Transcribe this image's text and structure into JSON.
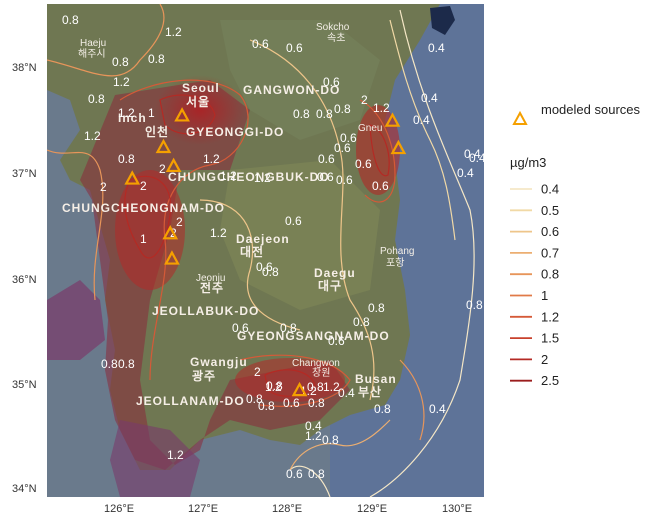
{
  "map": {
    "lat_ticks": [
      "34°N",
      "35°N",
      "36°N",
      "37°N",
      "38°N"
    ],
    "lon_ticks": [
      "126°E",
      "127°E",
      "128°E",
      "129°E",
      "130°E"
    ],
    "places": [
      {
        "id": "sokcho",
        "label": "Sokcho"
      },
      {
        "id": "sokcho-kr",
        "label": "속초"
      },
      {
        "id": "haeju",
        "label": "Haeju"
      },
      {
        "id": "haeju-kr",
        "label": "해주시"
      },
      {
        "id": "seoul",
        "label": "Seoul"
      },
      {
        "id": "seoul-kr",
        "label": "서울"
      },
      {
        "id": "incheon",
        "label": "Inch"
      },
      {
        "id": "incheon-kr",
        "label": "인천"
      },
      {
        "id": "gangwon",
        "label": "GANGWON-DO"
      },
      {
        "id": "gyeonggi",
        "label": "GYEONGGI-DO"
      },
      {
        "id": "chungbuk",
        "label": "CHUNGCHEONGBUK-DO"
      },
      {
        "id": "chungnam",
        "label": "CHUNGCHEONGNAM-DO"
      },
      {
        "id": "daejeon",
        "label": "Daejeon"
      },
      {
        "id": "daejeon-kr",
        "label": "대전"
      },
      {
        "id": "jeonju",
        "label": "Jeonju"
      },
      {
        "id": "jeonju-kr",
        "label": "전주"
      },
      {
        "id": "pohang",
        "label": "Pohang"
      },
      {
        "id": "pohang-kr",
        "label": "포항"
      },
      {
        "id": "daegu",
        "label": "Daegu"
      },
      {
        "id": "daegu-kr",
        "label": "대구"
      },
      {
        "id": "jeonbuk",
        "label": "JEOLLABUK-DO"
      },
      {
        "id": "gyeongnam",
        "label": "GYEONGSANGNAM-DO"
      },
      {
        "id": "gwangju",
        "label": "Gwangju"
      },
      {
        "id": "gwangju-kr",
        "label": "광주"
      },
      {
        "id": "changwon",
        "label": "Changwon"
      },
      {
        "id": "changwon-kr",
        "label": "창원"
      },
      {
        "id": "busan",
        "label": "Busan"
      },
      {
        "id": "busan-kr",
        "label": "부산"
      },
      {
        "id": "jeonnam",
        "label": "JEOLLANAM-DO"
      },
      {
        "id": "gangneung",
        "label": "Gneu"
      }
    ],
    "contour_labels": [
      "0.8",
      "0.4",
      "1.2",
      "0.8",
      "0.8",
      "1.2",
      "0.8",
      "0.6",
      "0.6",
      "0.6",
      "0.4",
      "0.4",
      "0.4",
      "1.2",
      "2",
      "1.2",
      "0.8",
      "0.8",
      "0.8",
      "0.6",
      "0.6",
      "0.6",
      "1.2",
      "1",
      "0.6",
      "0.4",
      "0.4",
      "2",
      "2",
      "1.2",
      "1.2",
      "0.8",
      "2",
      "1.2",
      "2",
      "2",
      "1.2",
      "1",
      "0.6",
      "0.6",
      "0.8",
      "0.6",
      "0.6",
      "0.6",
      "0.8",
      "0.8",
      "0.8",
      "0.6",
      "1.2",
      "2",
      "0.8",
      "0.8",
      "1.2",
      "0.8",
      "1.2",
      "0.4",
      "0.8",
      "0.8",
      "0.6",
      "0.8",
      "0.4",
      "0.8",
      "0.8",
      "0.6",
      "1.2",
      "0.8",
      "0.6",
      "0.8",
      "1.2",
      "0.8",
      "0.4"
    ],
    "sources": [
      {
        "lon": 126.64,
        "lat": 37.54
      },
      {
        "lon": 126.42,
        "lat": 37.24
      },
      {
        "lon": 126.54,
        "lat": 37.06
      },
      {
        "lon": 126.05,
        "lat": 36.94
      },
      {
        "lon": 126.5,
        "lat": 36.42
      },
      {
        "lon": 126.52,
        "lat": 36.18
      },
      {
        "lon": 128.03,
        "lat": 34.93
      },
      {
        "lon": 129.13,
        "lat": 37.49
      },
      {
        "lon": 129.2,
        "lat": 37.23
      }
    ]
  },
  "legend": {
    "sources_label": "modeled sources",
    "sources_color": "#f5a000",
    "title": "µg/m3",
    "levels": [
      {
        "label": "0.4",
        "color": "#f5e7c6"
      },
      {
        "label": "0.5",
        "color": "#f1d9a6"
      },
      {
        "label": "0.6",
        "color": "#eec58a"
      },
      {
        "label": "0.7",
        "color": "#ecae71"
      },
      {
        "label": "0.8",
        "color": "#e7955a"
      },
      {
        "label": "1",
        "color": "#e07a48"
      },
      {
        "label": "1.2",
        "color": "#d55a38"
      },
      {
        "label": "1.5",
        "color": "#c8402c"
      },
      {
        "label": "2",
        "color": "#b42a24"
      },
      {
        "label": "2.5",
        "color": "#9b1d1d"
      }
    ]
  }
}
